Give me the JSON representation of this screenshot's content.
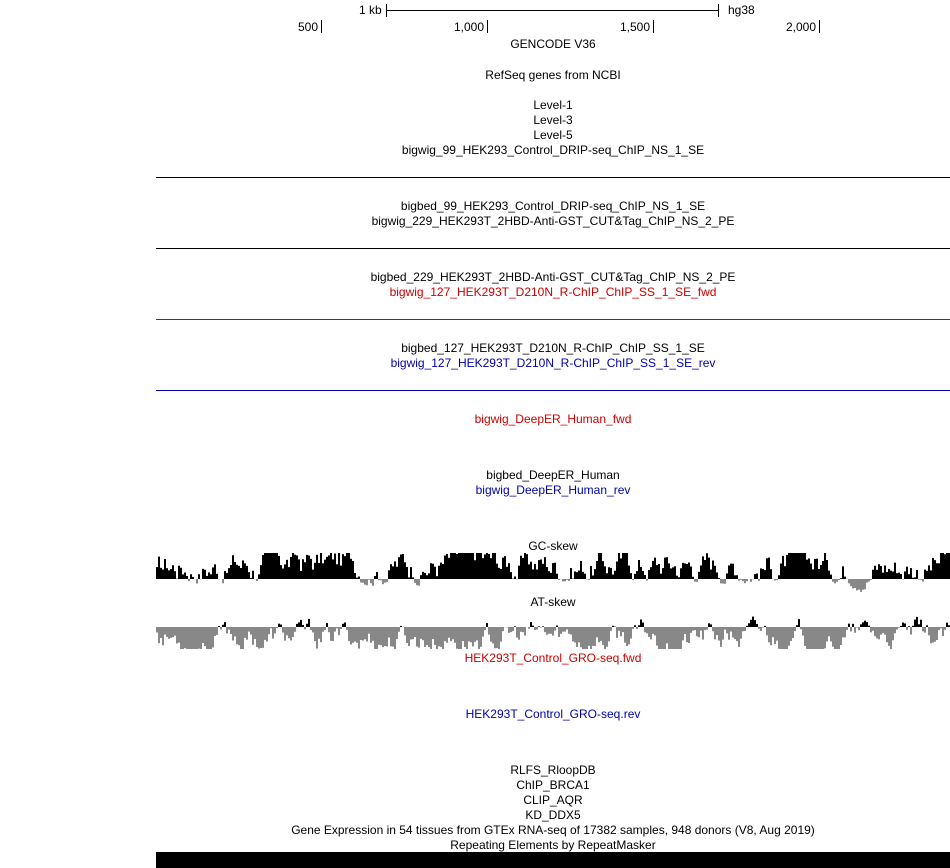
{
  "ruler": {
    "scale_label": "1 kb",
    "assembly": "hg38",
    "ticks": [
      "500",
      "1,000",
      "1,500",
      "2,000"
    ]
  },
  "tracks": [
    {
      "label": "GENCODE V36",
      "color": "#000000"
    },
    {
      "label": "RefSeq genes from NCBI",
      "color": "#000000"
    },
    {
      "label": "Level-1",
      "color": "#000000"
    },
    {
      "label": "Level-3",
      "color": "#000000"
    },
    {
      "label": "Level-5",
      "color": "#000000"
    },
    {
      "label": "bigwig_99_HEK293_Control_DRIP-seq_ChIP_NS_1_SE",
      "color": "#000000"
    },
    {
      "label": "bigbed_99_HEK293_Control_DRIP-seq_ChIP_NS_1_SE",
      "color": "#000000"
    },
    {
      "label": "bigwig_229_HEK293T_2HBD-Anti-GST_CUT&Tag_ChIP_NS_2_PE",
      "color": "#000000"
    },
    {
      "label": "bigbed_229_HEK293T_2HBD-Anti-GST_CUT&Tag_ChIP_NS_2_PE",
      "color": "#000000"
    },
    {
      "label": "bigwig_127_HEK293T_D210N_R-ChIP_ChIP_SS_1_SE_fwd",
      "color": "#cc0000"
    },
    {
      "label": "bigbed_127_HEK293T_D210N_R-ChIP_ChIP_SS_1_SE",
      "color": "#000000"
    },
    {
      "label": "bigwig_127_HEK293T_D210N_R-ChIP_ChIP_SS_1_SE_rev",
      "color": "#0000aa"
    },
    {
      "label": "bigwig_DeepER_Human_fwd",
      "color": "#cc0000"
    },
    {
      "label": "bigbed_DeepER_Human",
      "color": "#000000"
    },
    {
      "label": "bigwig_DeepER_Human_rev",
      "color": "#0000aa"
    },
    {
      "label": "GC-skew",
      "color": "#000000"
    },
    {
      "label": "AT-skew",
      "color": "#000000"
    },
    {
      "label": "HEK293T_Control_GRO-seq.fwd",
      "color": "#cc0000"
    },
    {
      "label": "HEK293T_Control_GRO-seq.rev",
      "color": "#0000aa"
    },
    {
      "label": "RLFS_RloopDB",
      "color": "#000000"
    },
    {
      "label": "ChIP_BRCA1",
      "color": "#000000"
    },
    {
      "label": "CLIP_AQR",
      "color": "#000000"
    },
    {
      "label": "KD_DDX5",
      "color": "#000000"
    },
    {
      "label": "Gene Expression in 54 tissues from GTEx RNA-seq of 17382 samples, 948 donors (V8, Aug 2019)",
      "color": "#000000"
    },
    {
      "label": "Repeating Elements by RepeatMasker",
      "color": "#000000"
    }
  ],
  "colors": {
    "positive_signal": "#000000",
    "negative_signal": "#888888",
    "fwd_strand": "#cc0000",
    "rev_strand": "#0000aa"
  }
}
